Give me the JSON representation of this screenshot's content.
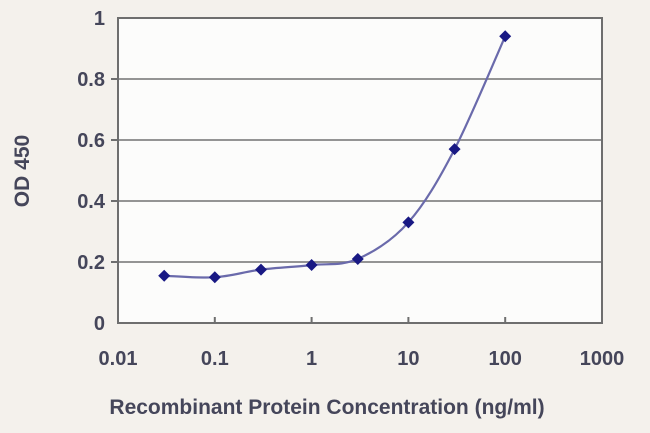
{
  "chart_data": {
    "type": "line",
    "title": "",
    "xlabel": "Recombinant Protein Concentration (ng/ml)",
    "ylabel": "OD 450",
    "x_scale": "log",
    "y_scale": "linear",
    "xlim": [
      0.01,
      1000
    ],
    "ylim": [
      0,
      1
    ],
    "x": [
      0.03,
      0.1,
      0.3,
      1,
      3,
      10,
      30,
      100
    ],
    "y": [
      0.155,
      0.15,
      0.175,
      0.19,
      0.21,
      0.33,
      0.57,
      0.94
    ],
    "x_tick_values": [
      0.01,
      0.1,
      1,
      10,
      100,
      1000
    ],
    "x_tick_labels": [
      "0.01",
      "0.1",
      "1",
      "10",
      "100",
      "1000"
    ],
    "y_tick_values": [
      0,
      0.2,
      0.4,
      0.6,
      0.8,
      1
    ],
    "y_tick_labels": [
      "0",
      "0.2",
      "0.4",
      "0.6",
      "0.8",
      "1"
    ],
    "grid": "horizontal-only",
    "legend_position": "none",
    "marker": "diamond",
    "line_shape": "smooth",
    "colors": {
      "line": "#6a6aab",
      "marker": "#191984",
      "axis": "#6e6e6e",
      "grid": "#868686",
      "tick_text": "#45465a",
      "axis_title_text": "#45465a",
      "plot_background": "#fcfcfb",
      "page_background": "#f4f1ec"
    }
  }
}
